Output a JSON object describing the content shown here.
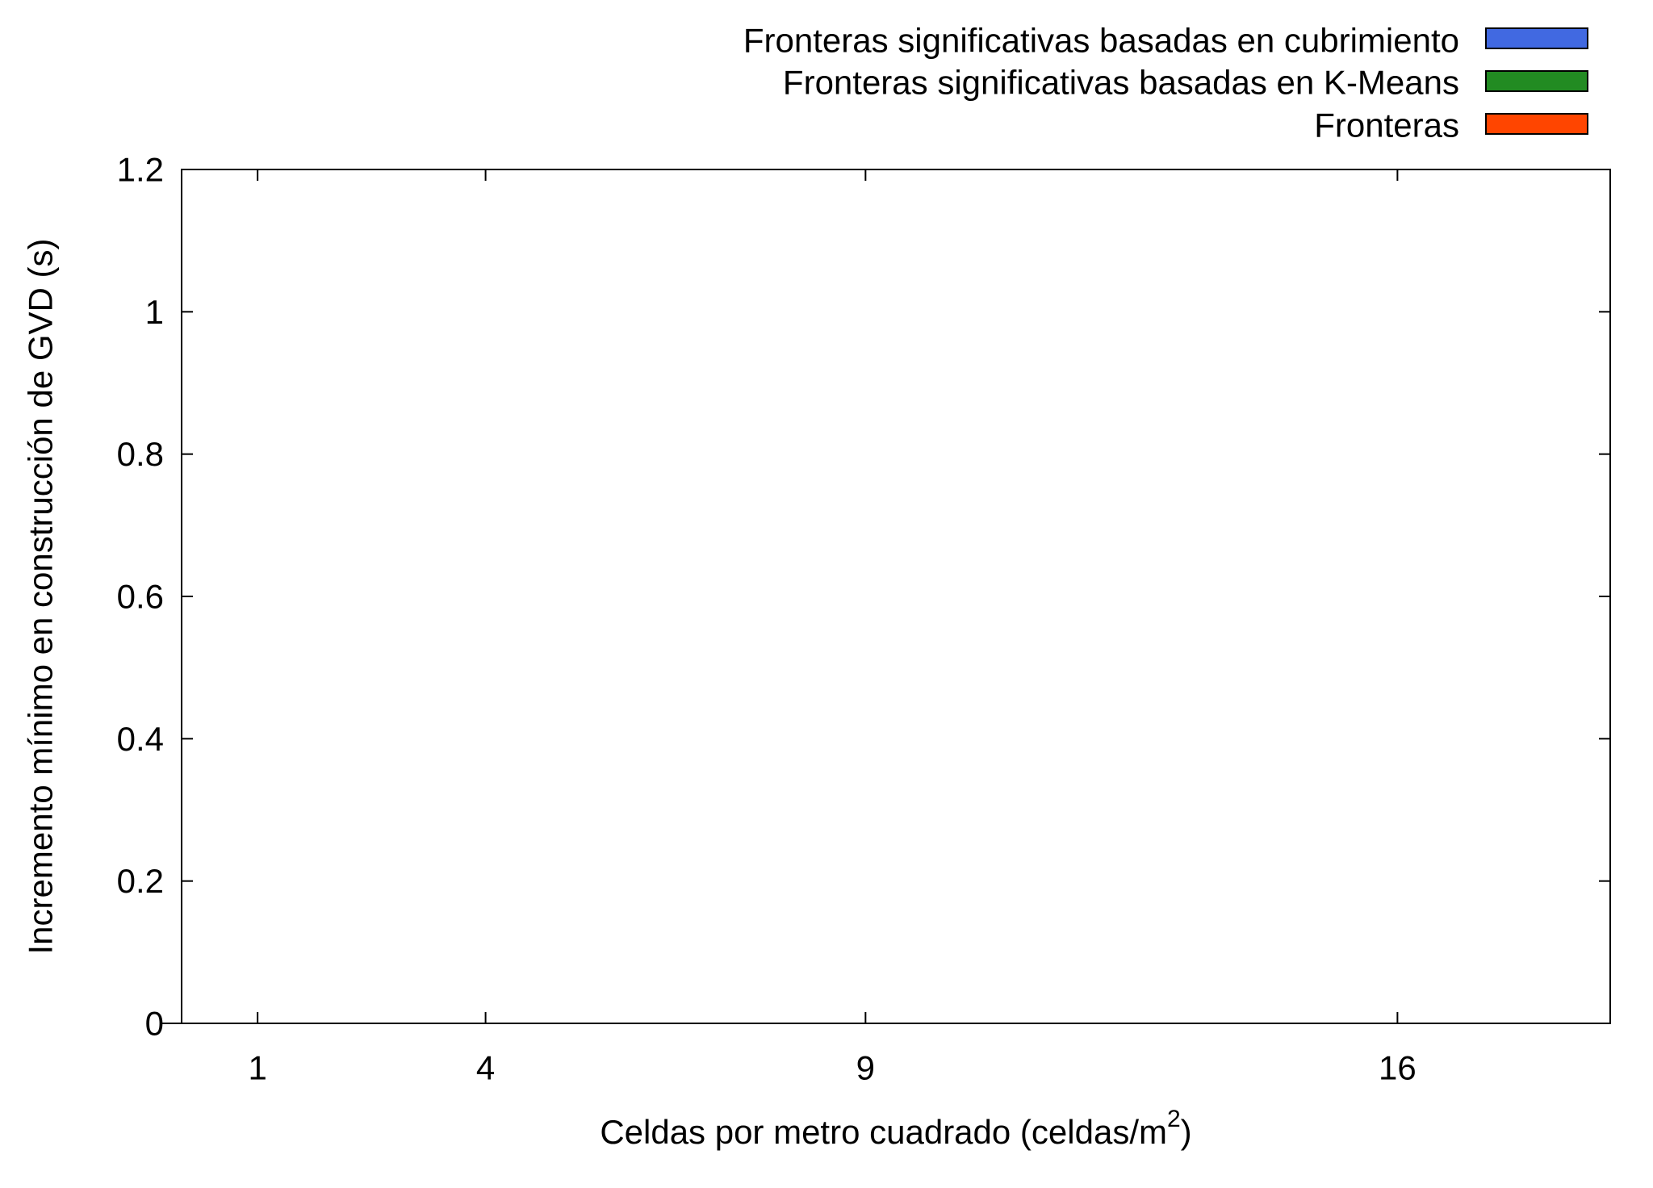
{
  "chart_data": {
    "type": "bar",
    "title": "",
    "xlabel": "Celdas por metro cuadrado (celdas/m",
    "xlabel_superscript": "2",
    "xlabel_suffix": ")",
    "ylabel": "Incremento mínimo en construcción de GVD (s)",
    "x_ticks": [
      "1",
      "4",
      "9",
      "16"
    ],
    "x_values": [
      1,
      4,
      9,
      16
    ],
    "y_ticks": [
      "0",
      "0.2",
      "0.4",
      "0.6",
      "0.8",
      "1",
      "1.2"
    ],
    "ylim": [
      0,
      1.2
    ],
    "grid": false,
    "legend_position": "top-right",
    "series": [
      {
        "name": "Fronteras significativas basadas en cubrimiento",
        "color": "#4169e1",
        "values": [
          0,
          0,
          0,
          0
        ]
      },
      {
        "name": "Fronteras significativas basadas en K-Means",
        "color": "#228b22",
        "values": [
          0,
          0,
          0,
          0
        ]
      },
      {
        "name": "Fronteras",
        "color": "#ff4500",
        "values": [
          0,
          0,
          0,
          0
        ]
      }
    ]
  }
}
